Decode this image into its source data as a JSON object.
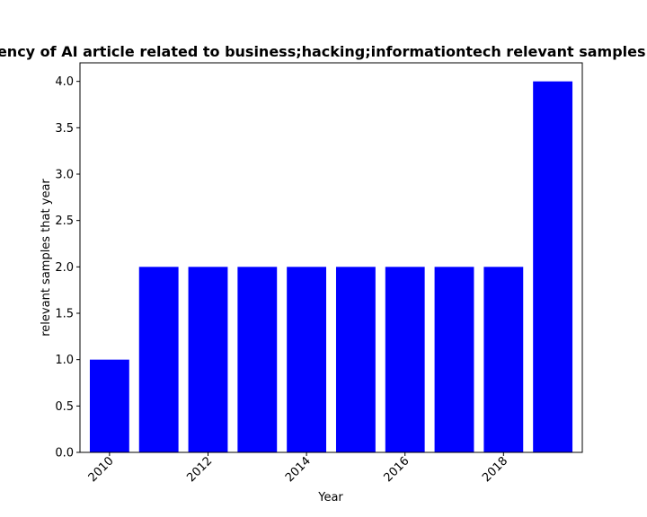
{
  "chart_data": {
    "type": "bar",
    "title": "Sample frequency of AI article related to business;hacking;informationtech relevant samples that year in pri",
    "xlabel": "Year",
    "ylabel": "relevant samples that year",
    "x": [
      2010,
      2011,
      2012,
      2013,
      2014,
      2015,
      2016,
      2017,
      2018,
      2019
    ],
    "values": [
      1,
      2,
      2,
      2,
      2,
      2,
      2,
      2,
      2,
      4
    ],
    "xticks": [
      "2010",
      "2012",
      "2014",
      "2016",
      "2018"
    ],
    "yticks": [
      "0.0",
      "0.5",
      "1.0",
      "1.5",
      "2.0",
      "2.5",
      "3.0",
      "3.5",
      "4.0"
    ],
    "xlim": [
      2009.4,
      2019.6
    ],
    "ylim": [
      0,
      4.2
    ],
    "bar_color": "#0000ff",
    "grid": false,
    "legend": "none"
  }
}
